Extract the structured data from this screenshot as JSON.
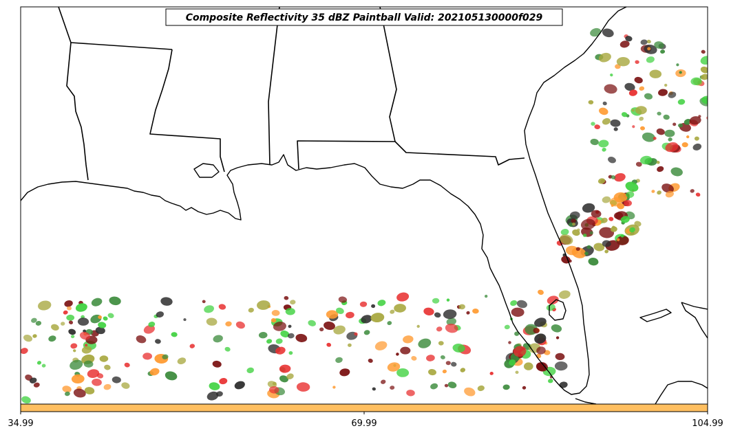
{
  "title": "Composite Reflectivity 35 dBZ Paintball Valid: 202105130000f029",
  "colorbar": {
    "color": "#ffbf60",
    "ticks": [
      "34.99",
      "69.99",
      "104.99"
    ]
  },
  "paintball_colors": [
    "#e83030",
    "#3fd13f",
    "#ff9a30",
    "#a8a840",
    "#2e2e2e",
    "#7a1010",
    "#3a8a3a"
  ],
  "map_features": [
    "coastline",
    "state-borders",
    "lakes"
  ]
}
